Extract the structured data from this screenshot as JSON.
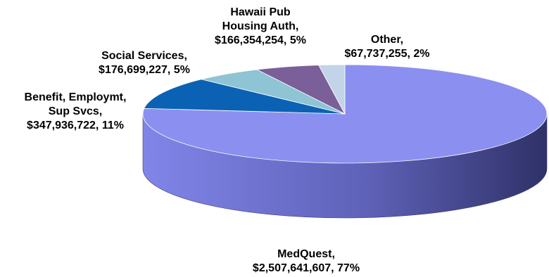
{
  "chart_data": {
    "type": "pie",
    "style": "3d-exploded-none",
    "slices": [
      {
        "name": "MedQuest",
        "value": 2507641607,
        "value_text": "$2,507,641,607",
        "percent_text": "77%",
        "color": "#8b8ff0"
      },
      {
        "name": "Benefit, Employmt, Sup Svcs",
        "value": 347936722,
        "value_text": "$347,936,722",
        "percent_text": "11%",
        "color": "#0b62b4"
      },
      {
        "name": "Social Services",
        "value": 176699227,
        "value_text": "$176,699,227",
        "percent_text": "5%",
        "color": "#8ec4d3"
      },
      {
        "name": "Hawaii Pub Housing Auth",
        "value": 166354254,
        "value_text": "$166,354,254",
        "percent_text": "5%",
        "color": "#7a5f99"
      },
      {
        "name": "Other",
        "value": 67737255,
        "value_text": "$67,737,255",
        "percent_text": "2%",
        "color": "#c3d4e8"
      }
    ],
    "labels": {
      "medquest": [
        "MedQuest,",
        "$2,507,641,607,  77%"
      ],
      "benefit": [
        "Benefit, Employmt,",
        "Sup Svcs,",
        "$347,936,722,  11%"
      ],
      "social": [
        "Social Services,",
        "$176,699,227,  5%"
      ],
      "housing": [
        "Hawaii Pub",
        "Housing Auth,",
        "$166,354,254,  5%"
      ],
      "other": [
        "Other,",
        "$67,737,255,  2%"
      ]
    }
  }
}
